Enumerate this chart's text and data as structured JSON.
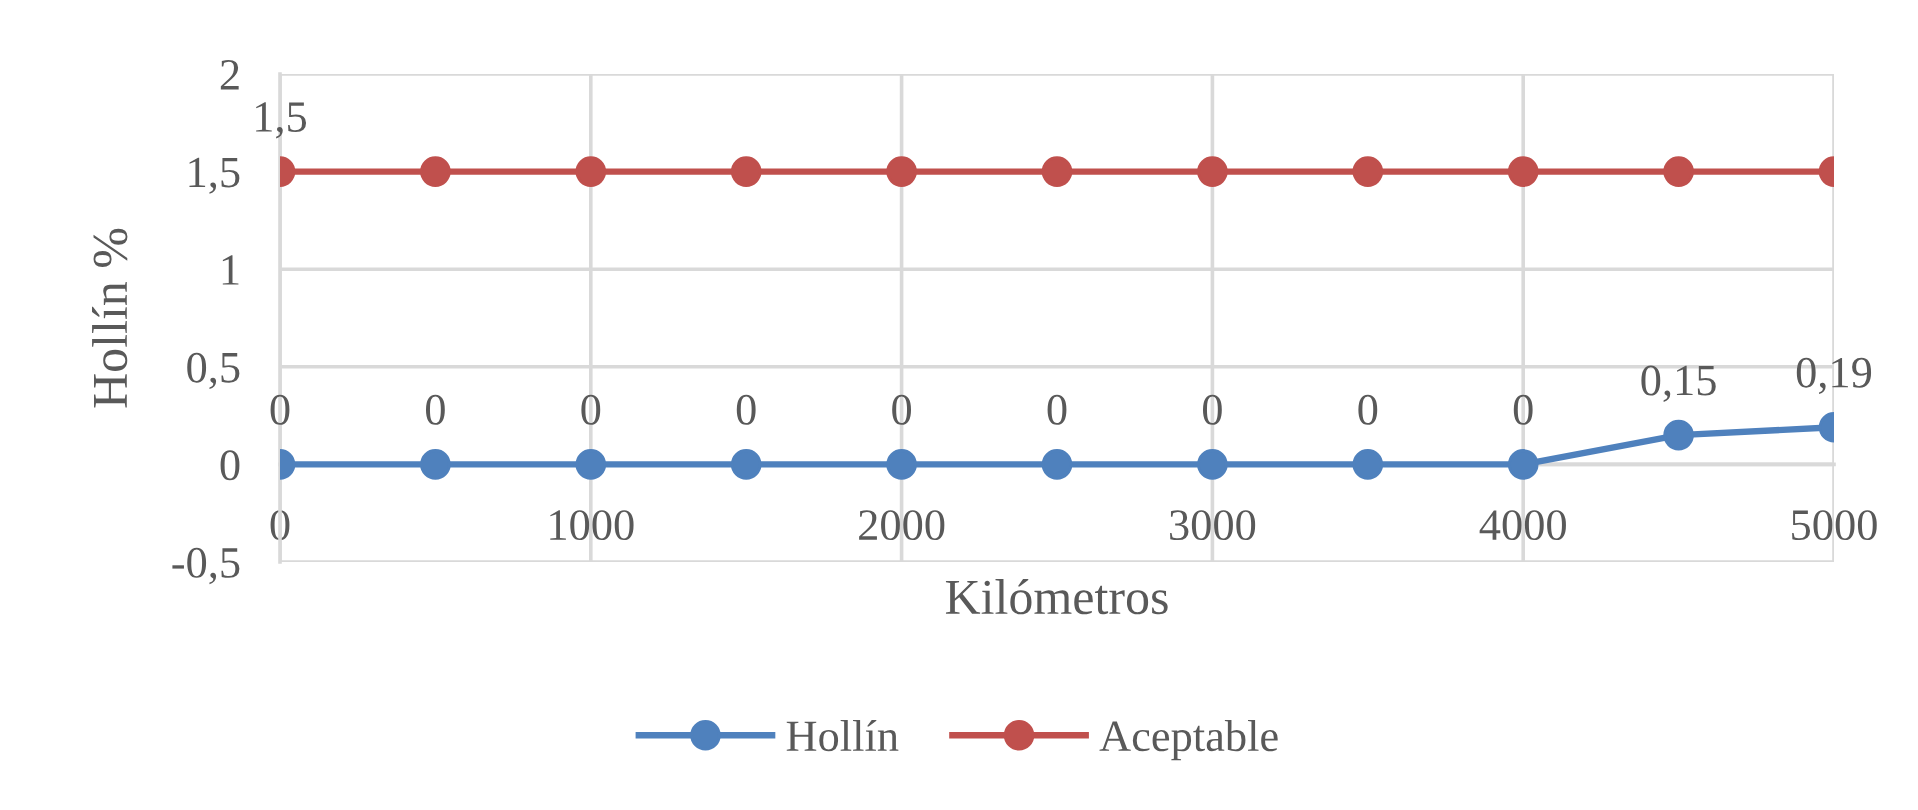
{
  "chart_data": {
    "type": "line",
    "xlabel": "Kilómetros",
    "ylabel": "Hollín %",
    "x": [
      0,
      500,
      1000,
      1500,
      2000,
      2500,
      3000,
      3500,
      4000,
      4500,
      5000
    ],
    "series": [
      {
        "name": "Hollín",
        "color": "#4f81bd",
        "values": [
          0,
          0,
          0,
          0,
          0,
          0,
          0,
          0,
          0,
          0.15,
          0.19
        ],
        "value_labels": [
          "0",
          "0",
          "0",
          "0",
          "0",
          "0",
          "0",
          "0",
          "0",
          "0,15",
          "0,19"
        ]
      },
      {
        "name": "Aceptable",
        "color": "#c0504d",
        "values": [
          1.5,
          1.5,
          1.5,
          1.5,
          1.5,
          1.5,
          1.5,
          1.5,
          1.5,
          1.5,
          1.5
        ],
        "value_labels": [
          "1,5",
          null,
          null,
          null,
          null,
          null,
          null,
          null,
          null,
          null,
          null
        ]
      }
    ],
    "xlim": [
      0,
      5000
    ],
    "xticks": [
      0,
      1000,
      2000,
      3000,
      4000,
      5000
    ],
    "ylim": [
      -0.5,
      2
    ],
    "yticks": [
      {
        "value": -0.5,
        "label": "-0,5"
      },
      0,
      {
        "value": 0.5,
        "label": "0,5"
      },
      1,
      {
        "value": 1.5,
        "label": "1,5"
      },
      2
    ],
    "grid": true,
    "legend": "bottom",
    "marker": "circle",
    "line_style": "solid"
  }
}
